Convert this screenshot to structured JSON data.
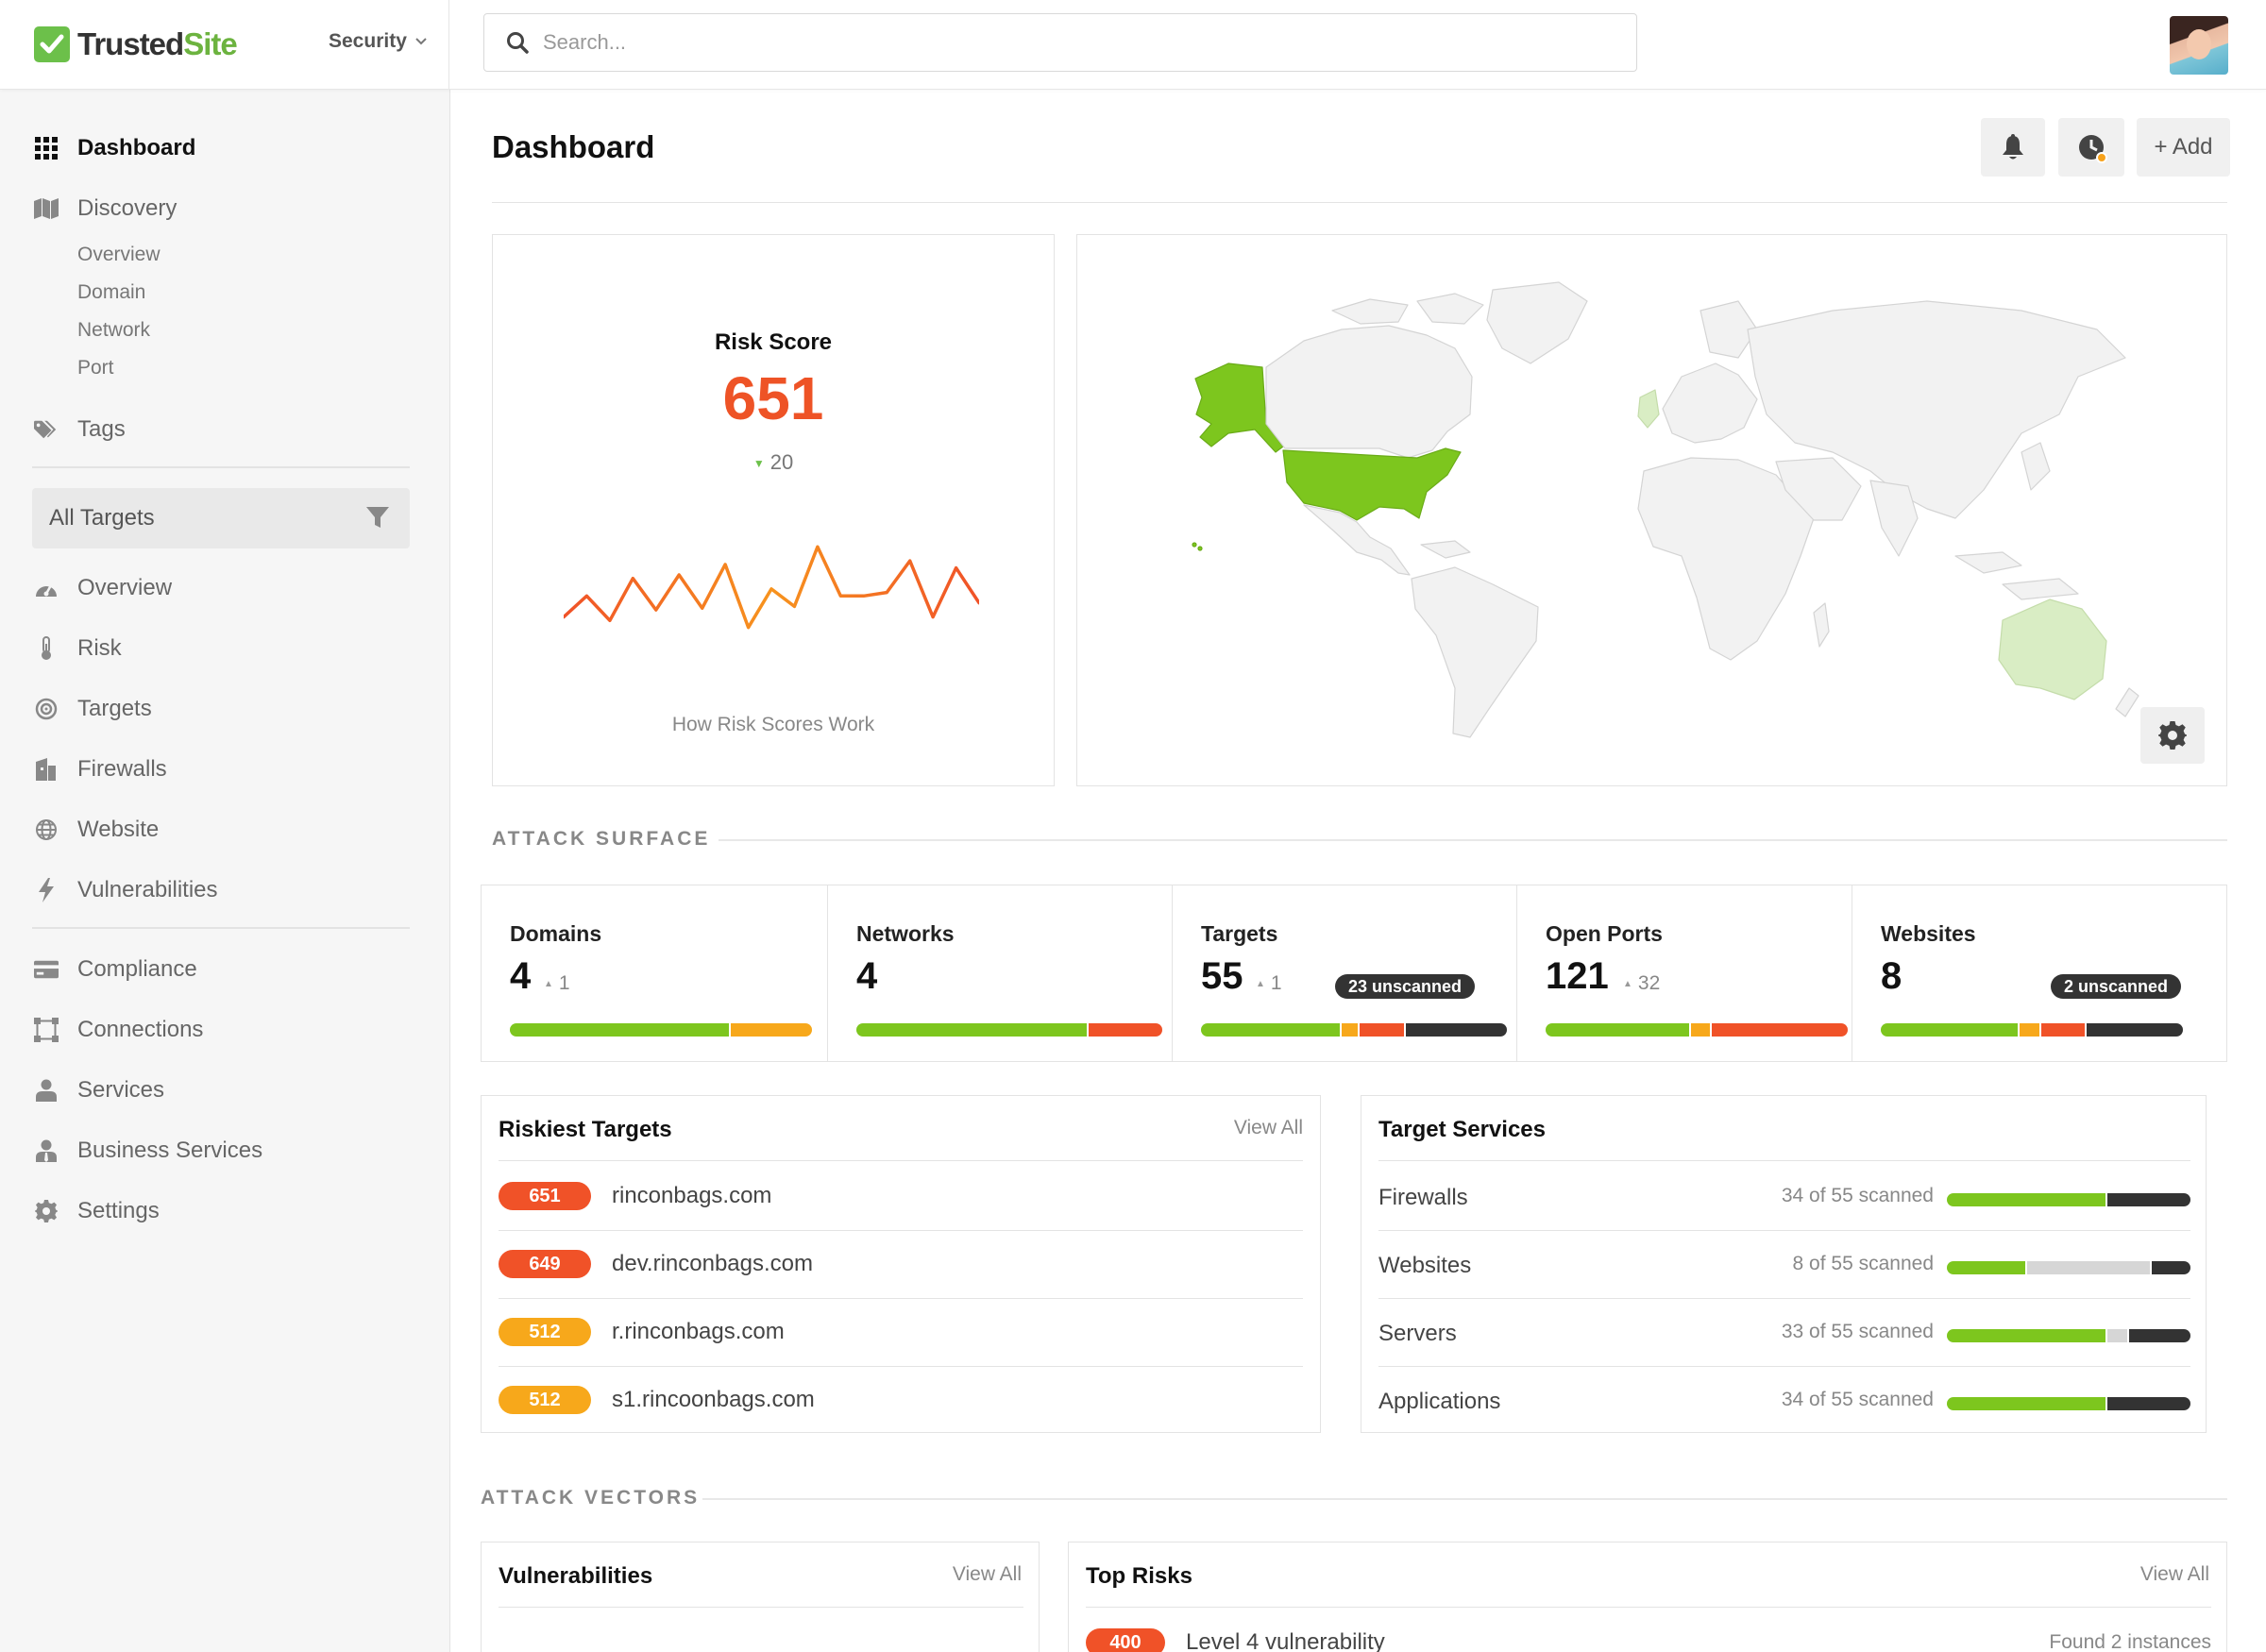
{
  "header": {
    "logo_text": "TrustedSite",
    "logo_icon": "check-icon",
    "product": "Security",
    "search_placeholder": "Search..."
  },
  "sidebar": {
    "dashboard": "Dashboard",
    "discovery": "Discovery",
    "discovery_sub": [
      "Overview",
      "Domain",
      "Network",
      "Port"
    ],
    "tags": "Tags",
    "filter": "All Targets",
    "items": [
      "Overview",
      "Risk",
      "Targets",
      "Firewalls",
      "Website",
      "Vulnerabilities"
    ],
    "items2": [
      "Compliance",
      "Connections",
      "Services",
      "Business Services",
      "Settings"
    ]
  },
  "main": {
    "title": "Dashboard",
    "add_label": "+ Add"
  },
  "risk": {
    "label": "Risk Score",
    "value": "651",
    "delta": "20",
    "link": "How Risk Scores Work",
    "color": "#ee5326",
    "sparkline": [
      58,
      70,
      56,
      80,
      62,
      82,
      63,
      88,
      52,
      74,
      64,
      98,
      70,
      70,
      72,
      90,
      58,
      86,
      66
    ]
  },
  "map": {
    "highlight_color": "#7dc61e",
    "light_color": "#d9edc4",
    "base_color": "#f2f2f2"
  },
  "attack_surface": {
    "label": "ATTACK SURFACE",
    "stats": [
      {
        "label": "Domains",
        "value": "4",
        "delta": "1",
        "badge": "",
        "bar": [
          0.73,
          0.27,
          0,
          0
        ]
      },
      {
        "label": "Networks",
        "value": "4",
        "delta": "",
        "badge": "",
        "bar": [
          0.76,
          0,
          0.24,
          0
        ]
      },
      {
        "label": "Targets",
        "value": "55",
        "delta": "1",
        "badge": "23 unscanned",
        "bar": [
          0.46,
          0.06,
          0.15,
          0.33
        ]
      },
      {
        "label": "Open Ports",
        "value": "121",
        "delta": "32",
        "badge": "",
        "bar": [
          0.48,
          0.07,
          0.45,
          0
        ]
      },
      {
        "label": "Websites",
        "value": "8",
        "delta": "",
        "badge": "2 unscanned",
        "bar": [
          0.46,
          0.07,
          0.15,
          0.32
        ]
      }
    ]
  },
  "riskiest": {
    "title": "Riskiest Targets",
    "link": "View All",
    "rows": [
      {
        "score": "651",
        "name": "rinconbags.com",
        "color": "#f05228"
      },
      {
        "score": "649",
        "name": "dev.rinconbags.com",
        "color": "#f05228"
      },
      {
        "score": "512",
        "name": "r.rinconbags.com",
        "color": "#f7a81b"
      },
      {
        "score": "512",
        "name": "s1.rincoonbags.com",
        "color": "#f7a81b"
      }
    ]
  },
  "target_services": {
    "title": "Target Services",
    "rows": [
      {
        "name": "Firewalls",
        "count": "34 of 55 scanned",
        "bar": [
          0.66,
          0,
          0.34
        ]
      },
      {
        "name": "Websites",
        "count": "8 of 55 scanned",
        "bar": [
          0.33,
          0.51,
          0.16
        ]
      },
      {
        "name": "Servers",
        "count": "33 of 55 scanned",
        "bar": [
          0.66,
          0.09,
          0.25
        ]
      },
      {
        "name": "Applications",
        "count": "34 of 55 scanned",
        "bar": [
          0.66,
          0,
          0.34
        ]
      }
    ]
  },
  "attack_vectors": {
    "label": "ATTACK VECTORS",
    "vuln_title": "Vulnerabilities",
    "vuln_link": "View All",
    "risks_title": "Top Risks",
    "risks_link": "View All",
    "risk_row": {
      "score": "400",
      "name": "Level 4 vulnerability",
      "found": "Found 2 instances"
    }
  },
  "colors": {
    "green": "#7dc61e",
    "orange": "#f7a81b",
    "red": "#f05228",
    "dark": "#333333",
    "grey": "#d6d6d6"
  }
}
